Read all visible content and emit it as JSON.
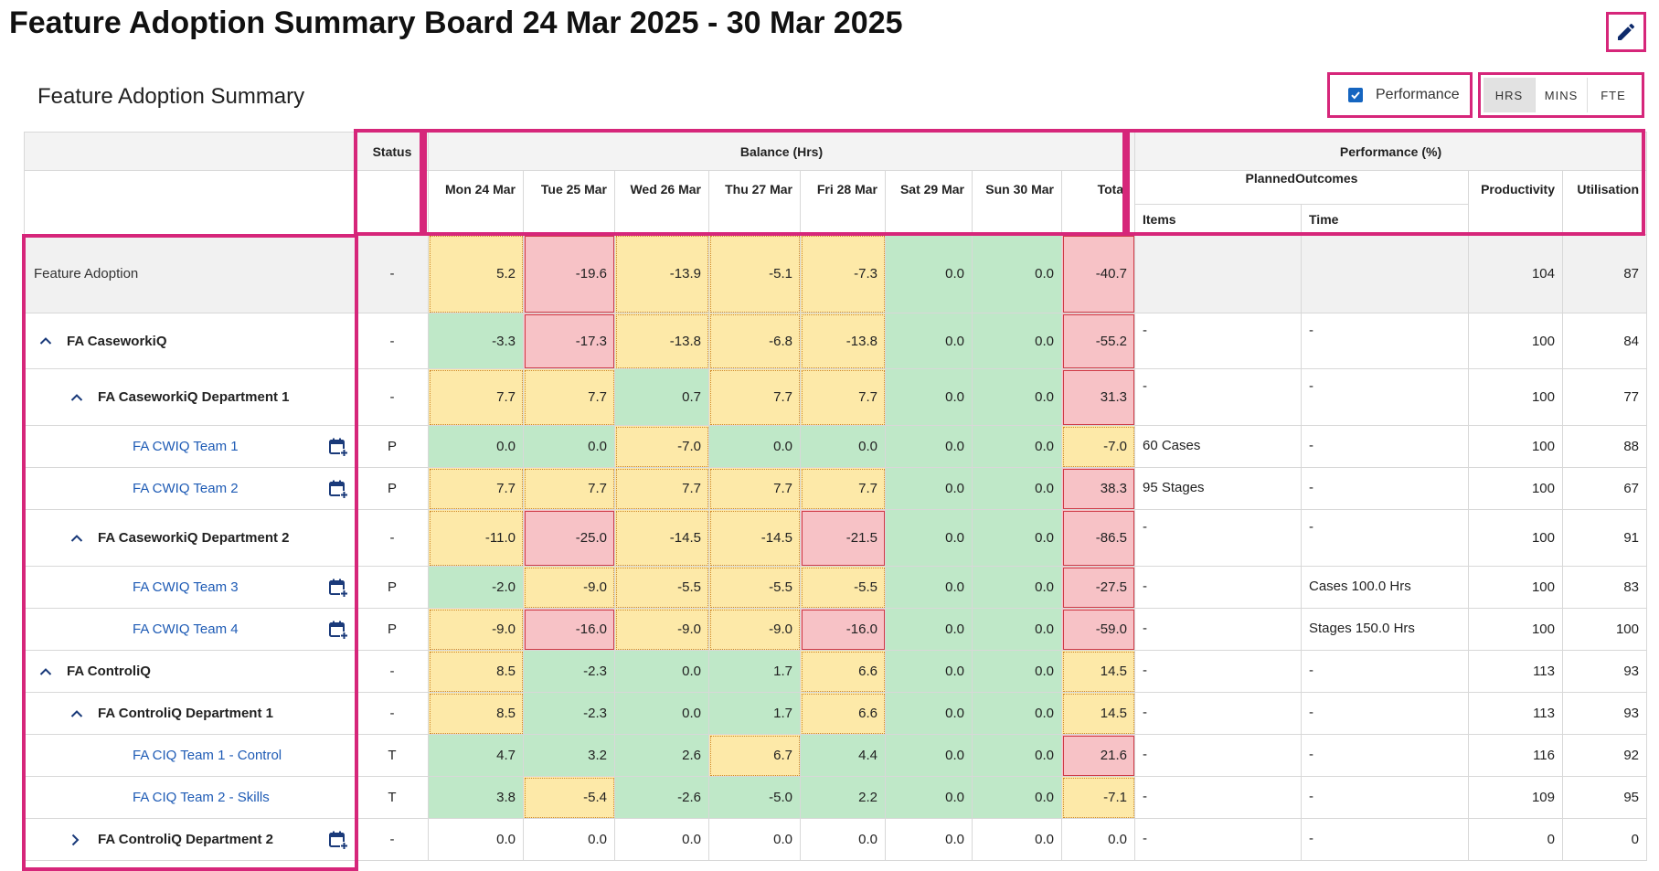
{
  "page": {
    "title": "Feature Adoption Summary Board 24 Mar 2025 - 30 Mar 2025",
    "subtitle": "Feature Adoption Summary"
  },
  "controls": {
    "performance_label": "Performance",
    "performance_checked": true,
    "units": [
      "HRS",
      "MINS",
      "FTE"
    ],
    "active_unit": "HRS"
  },
  "icons": {
    "edit": "pencil-icon",
    "calendar": "calendar-add-icon",
    "expand": "chevron-up-icon",
    "collapse": "chevron-right-icon",
    "checkbox": "checkmark-icon"
  },
  "colors": {
    "accent": "#d6267a",
    "positive": "#bfe8c8",
    "warning": "#fde9a8",
    "negative": "#f7c2c6",
    "link": "#1e5bb5",
    "checkbox": "#1565c0"
  },
  "table": {
    "group_headers": {
      "status": "Status",
      "balance": "Balance (Hrs)",
      "performance": "Performance (%)"
    },
    "day_headers": [
      "Mon 24 Mar",
      "Tue 25 Mar",
      "Wed 26 Mar",
      "Thu 27 Mar",
      "Fri 28 Mar",
      "Sat 29 Mar",
      "Sun 30 Mar"
    ],
    "total_header": "Total",
    "planned_header": "PlannedOutcomes",
    "items_header": "Items",
    "time_header": "Time",
    "productivity_header": "Productivity",
    "utilisation_header": "Utilisation",
    "rows": [
      {
        "name": "Feature Adoption",
        "status": "-",
        "days": [
          "5.2",
          "-19.6",
          "-13.9",
          "-5.1",
          "-7.3",
          "0.0",
          "0.0"
        ],
        "total": "-40.7",
        "items": "",
        "time": "",
        "productivity": "104",
        "utilisation": "87"
      },
      {
        "name": "FA CaseworkiQ",
        "status": "-",
        "days": [
          "-3.3",
          "-17.3",
          "-13.8",
          "-6.8",
          "-13.8",
          "0.0",
          "0.0"
        ],
        "total": "-55.2",
        "items": "-",
        "time": "-",
        "productivity": "100",
        "utilisation": "84"
      },
      {
        "name": "FA CaseworkiQ Department 1",
        "status": "-",
        "days": [
          "7.7",
          "7.7",
          "0.7",
          "7.7",
          "7.7",
          "0.0",
          "0.0"
        ],
        "total": "31.3",
        "items": "-",
        "time": "-",
        "productivity": "100",
        "utilisation": "77"
      },
      {
        "name": "FA CWIQ Team 1",
        "status": "P",
        "days": [
          "0.0",
          "0.0",
          "-7.0",
          "0.0",
          "0.0",
          "0.0",
          "0.0"
        ],
        "total": "-7.0",
        "items": "60 Cases",
        "time": "-",
        "productivity": "100",
        "utilisation": "88"
      },
      {
        "name": "FA CWIQ Team 2",
        "status": "P",
        "days": [
          "7.7",
          "7.7",
          "7.7",
          "7.7",
          "7.7",
          "0.0",
          "0.0"
        ],
        "total": "38.3",
        "items": "95 Stages",
        "time": "-",
        "productivity": "100",
        "utilisation": "67"
      },
      {
        "name": "FA CaseworkiQ Department 2",
        "status": "-",
        "days": [
          "-11.0",
          "-25.0",
          "-14.5",
          "-14.5",
          "-21.5",
          "0.0",
          "0.0"
        ],
        "total": "-86.5",
        "items": "-",
        "time": "-",
        "productivity": "100",
        "utilisation": "91"
      },
      {
        "name": "FA CWIQ Team 3",
        "status": "P",
        "days": [
          "-2.0",
          "-9.0",
          "-5.5",
          "-5.5",
          "-5.5",
          "0.0",
          "0.0"
        ],
        "total": "-27.5",
        "items": "-",
        "time": "Cases 100.0 Hrs",
        "productivity": "100",
        "utilisation": "83"
      },
      {
        "name": "FA CWIQ Team 4",
        "status": "P",
        "days": [
          "-9.0",
          "-16.0",
          "-9.0",
          "-9.0",
          "-16.0",
          "0.0",
          "0.0"
        ],
        "total": "-59.0",
        "items": "-",
        "time": "Stages 150.0 Hrs",
        "productivity": "100",
        "utilisation": "100"
      },
      {
        "name": "FA ControliQ",
        "status": "-",
        "days": [
          "8.5",
          "-2.3",
          "0.0",
          "1.7",
          "6.6",
          "0.0",
          "0.0"
        ],
        "total": "14.5",
        "items": "-",
        "time": "-",
        "productivity": "113",
        "utilisation": "93"
      },
      {
        "name": "FA ControliQ Department 1",
        "status": "-",
        "days": [
          "8.5",
          "-2.3",
          "0.0",
          "1.7",
          "6.6",
          "0.0",
          "0.0"
        ],
        "total": "14.5",
        "items": "-",
        "time": "-",
        "productivity": "113",
        "utilisation": "93"
      },
      {
        "name": "FA CIQ Team 1 - Control",
        "status": "T",
        "days": [
          "4.7",
          "3.2",
          "2.6",
          "6.7",
          "4.4",
          "0.0",
          "0.0"
        ],
        "total": "21.6",
        "items": "-",
        "time": "-",
        "productivity": "116",
        "utilisation": "92"
      },
      {
        "name": "FA CIQ Team 2 - Skills",
        "status": "T",
        "days": [
          "3.8",
          "-5.4",
          "-2.6",
          "-5.0",
          "2.2",
          "0.0",
          "0.0"
        ],
        "total": "-7.1",
        "items": "-",
        "time": "-",
        "productivity": "109",
        "utilisation": "95"
      },
      {
        "name": "FA ControliQ Department 2",
        "status": "-",
        "days": [
          "0.0",
          "0.0",
          "0.0",
          "0.0",
          "0.0",
          "0.0",
          "0.0"
        ],
        "total": "0.0",
        "items": "-",
        "time": "-",
        "productivity": "0",
        "utilisation": "0"
      }
    ]
  }
}
